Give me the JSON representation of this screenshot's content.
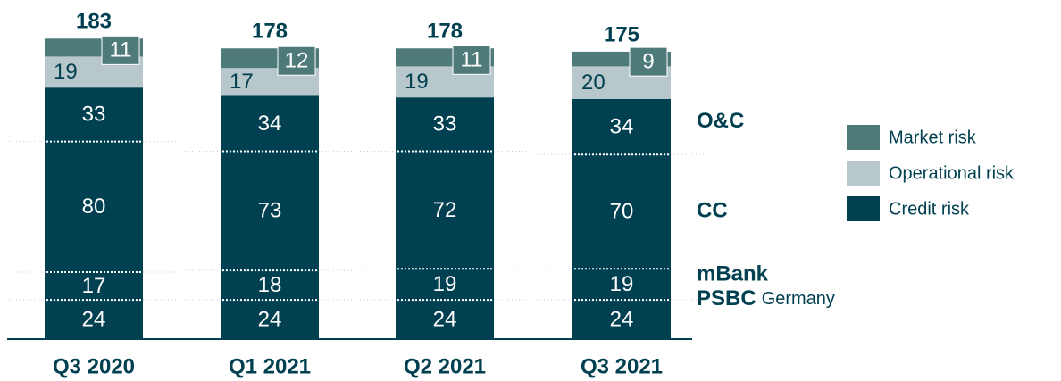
{
  "chart_data": {
    "type": "stacked_bar",
    "categories": [
      "Q3 2020",
      "Q1 2021",
      "Q2 2021",
      "Q3 2021"
    ],
    "totals": [
      183,
      178,
      178,
      175
    ],
    "series": [
      {
        "name": "PSBC",
        "name_note": "Germany",
        "color": "#004050",
        "values": [
          24,
          24,
          24,
          24
        ]
      },
      {
        "name": "mBank",
        "color": "#004050",
        "values": [
          17,
          18,
          19,
          19
        ]
      },
      {
        "name": "CC",
        "color": "#004050",
        "values": [
          80,
          73,
          72,
          70
        ]
      },
      {
        "name": "O&C",
        "color": "#004050",
        "values": [
          33,
          34,
          33,
          34
        ]
      },
      {
        "name": "Operational risk",
        "color": "#b7c7cb",
        "values": [
          19,
          17,
          19,
          20
        ]
      },
      {
        "name": "Market risk",
        "color": "#4e7a7a",
        "values": [
          11,
          12,
          11,
          9
        ]
      }
    ],
    "legend": [
      {
        "name": "Market risk",
        "color": "#4e7a7a"
      },
      {
        "name": "Operational risk",
        "color": "#b7c7cb"
      },
      {
        "name": "Credit risk",
        "color": "#004050"
      }
    ]
  }
}
